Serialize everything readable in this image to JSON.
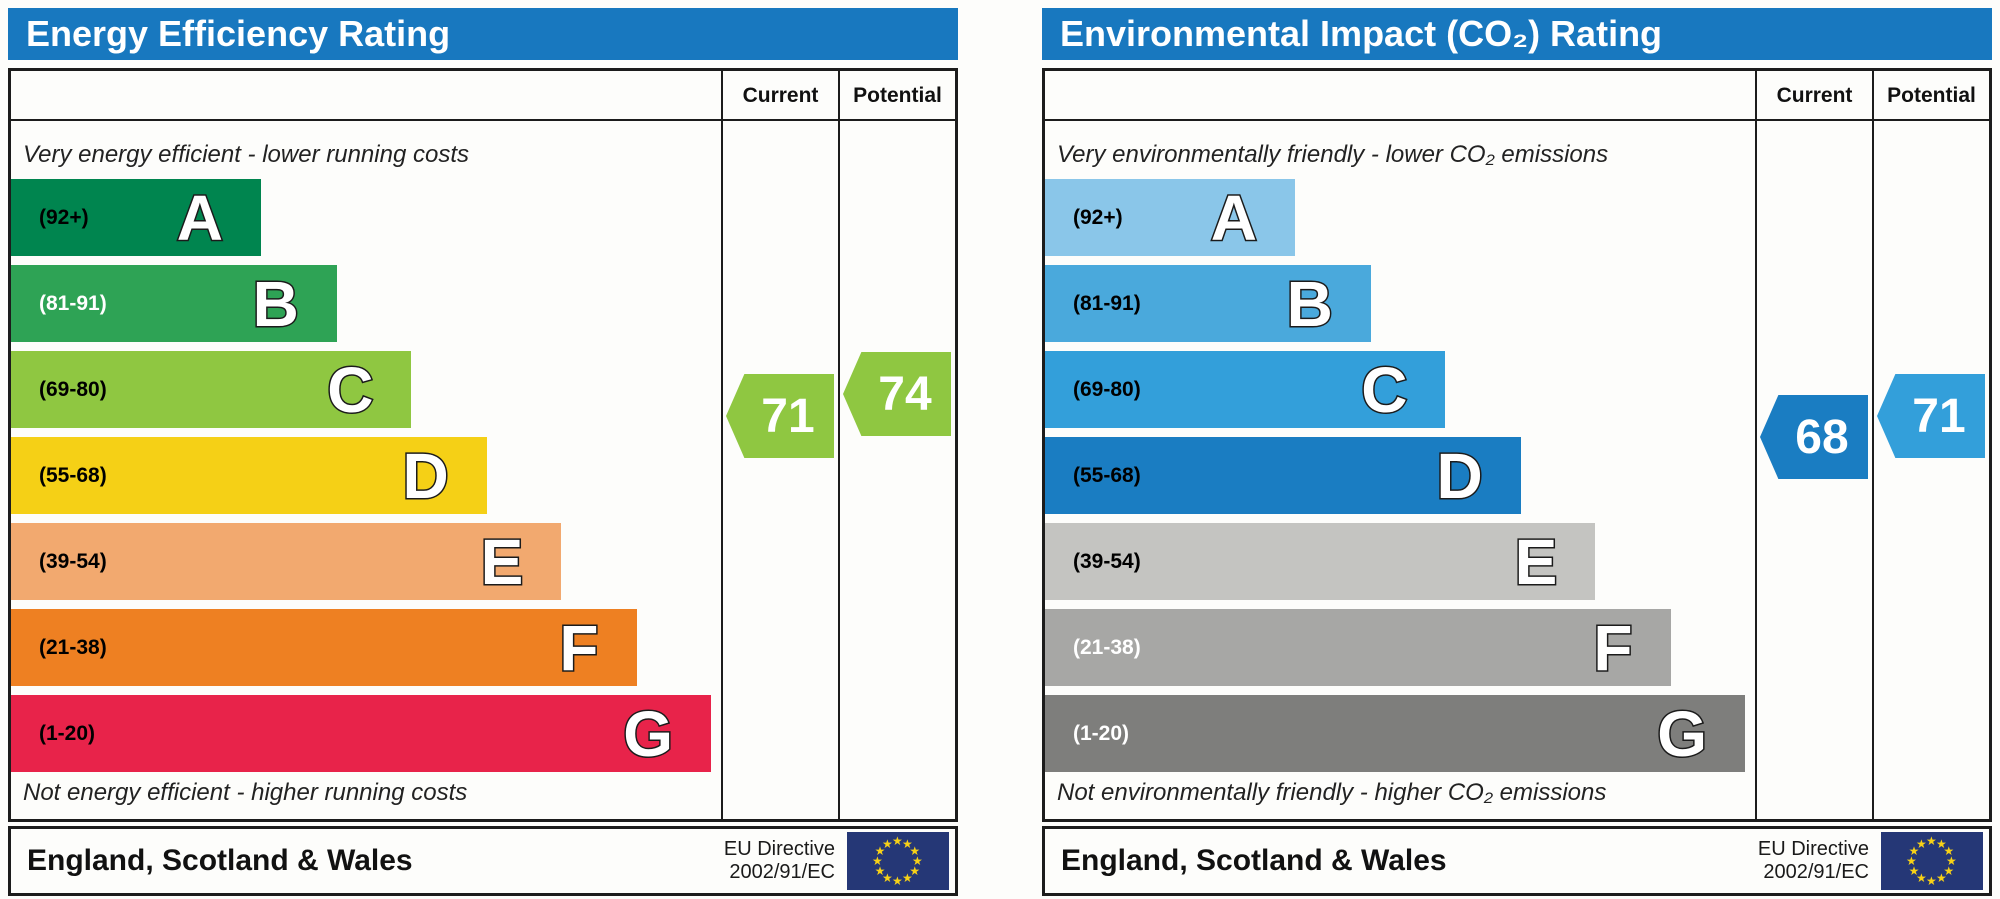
{
  "charts": [
    {
      "title": "Energy Efficiency Rating",
      "col_current": "Current",
      "col_potential": "Potential",
      "top_note": "Very energy efficient - lower running costs",
      "bottom_note": "Not energy efficient - higher running costs",
      "bands": [
        {
          "grade": "A",
          "range": "(92+)",
          "min": 92,
          "max": 100,
          "color": "#00854F",
          "range_color": "#000000",
          "width_pct": 35.2
        },
        {
          "grade": "B",
          "range": "(81-91)",
          "min": 81,
          "max": 91,
          "color": "#2EA355",
          "range_color": "#ffffff",
          "width_pct": 45.9
        },
        {
          "grade": "C",
          "range": "(69-80)",
          "min": 69,
          "max": 80,
          "color": "#8FC741",
          "range_color": "#000000",
          "width_pct": 56.4
        },
        {
          "grade": "D",
          "range": "(55-68)",
          "min": 55,
          "max": 68,
          "color": "#F5D016",
          "range_color": "#000000",
          "width_pct": 67.0
        },
        {
          "grade": "E",
          "range": "(39-54)",
          "min": 39,
          "max": 54,
          "color": "#F2A96F",
          "range_color": "#000000",
          "width_pct": 77.5
        },
        {
          "grade": "F",
          "range": "(21-38)",
          "min": 21,
          "max": 38,
          "color": "#EE8022",
          "range_color": "#000000",
          "width_pct": 88.1
        },
        {
          "grade": "G",
          "range": "(1-20)",
          "min": 1,
          "max": 20,
          "color": "#E8234A",
          "range_color": "#000000",
          "width_pct": 98.6
        }
      ],
      "current": {
        "value": 71,
        "color": "#8FC741"
      },
      "potential": {
        "value": 74,
        "color": "#8FC741"
      },
      "footer": {
        "region": "England, Scotland & Wales",
        "directive_line1": "EU Directive",
        "directive_line2": "2002/91/EC"
      }
    },
    {
      "title": "Environmental Impact (CO₂) Rating",
      "col_current": "Current",
      "col_potential": "Potential",
      "top_note": "Very environmentally friendly - lower CO₂ emissions",
      "bottom_note": "Not environmentally friendly - higher CO₂ emissions",
      "bands": [
        {
          "grade": "A",
          "range": "(92+)",
          "min": 92,
          "max": 100,
          "color": "#8AC6E9",
          "range_color": "#000000",
          "width_pct": 35.2
        },
        {
          "grade": "B",
          "range": "(81-91)",
          "min": 81,
          "max": 91,
          "color": "#4AA9DC",
          "range_color": "#000000",
          "width_pct": 45.9
        },
        {
          "grade": "C",
          "range": "(69-80)",
          "min": 69,
          "max": 80,
          "color": "#339FDA",
          "range_color": "#000000",
          "width_pct": 56.4
        },
        {
          "grade": "D",
          "range": "(55-68)",
          "min": 55,
          "max": 68,
          "color": "#1A7DC2",
          "range_color": "#000000",
          "width_pct": 67.0
        },
        {
          "grade": "E",
          "range": "(39-54)",
          "min": 39,
          "max": 54,
          "color": "#C4C4C1",
          "range_color": "#000000",
          "width_pct": 77.5
        },
        {
          "grade": "F",
          "range": "(21-38)",
          "min": 21,
          "max": 38,
          "color": "#A7A7A5",
          "range_color": "#ffffff",
          "width_pct": 88.1
        },
        {
          "grade": "G",
          "range": "(1-20)",
          "min": 1,
          "max": 20,
          "color": "#7E7E7C",
          "range_color": "#ffffff",
          "width_pct": 98.6
        }
      ],
      "current": {
        "value": 68,
        "color": "#1A7DC2"
      },
      "potential": {
        "value": 71,
        "color": "#339FDA"
      },
      "footer": {
        "region": "England, Scotland & Wales",
        "directive_line1": "EU Directive",
        "directive_line2": "2002/91/EC"
      }
    }
  ],
  "chart_data": [
    {
      "type": "bar",
      "title": "Energy Efficiency Rating",
      "categories": [
        "A (92+)",
        "B (81-91)",
        "C (69-80)",
        "D (55-68)",
        "E (39-54)",
        "F (21-38)",
        "G (1-20)"
      ],
      "band_colors": [
        "#00854F",
        "#2EA355",
        "#8FC741",
        "#F5D016",
        "#F2A96F",
        "#EE8022",
        "#E8234A"
      ],
      "series": [
        {
          "name": "Current",
          "values": [
            71
          ]
        },
        {
          "name": "Potential",
          "values": [
            74
          ]
        }
      ],
      "value_range": [
        1,
        100
      ],
      "footer": "England, Scotland & Wales — EU Directive 2002/91/EC"
    },
    {
      "type": "bar",
      "title": "Environmental Impact (CO₂) Rating",
      "categories": [
        "A (92+)",
        "B (81-91)",
        "C (69-80)",
        "D (55-68)",
        "E (39-54)",
        "F (21-38)",
        "G (1-20)"
      ],
      "band_colors": [
        "#8AC6E9",
        "#4AA9DC",
        "#339FDA",
        "#1A7DC2",
        "#C4C4C1",
        "#A7A7A5",
        "#7E7E7C"
      ],
      "series": [
        {
          "name": "Current",
          "values": [
            68
          ]
        },
        {
          "name": "Potential",
          "values": [
            71
          ]
        }
      ],
      "value_range": [
        1,
        100
      ],
      "footer": "England, Scotland & Wales — EU Directive 2002/91/EC"
    }
  ]
}
